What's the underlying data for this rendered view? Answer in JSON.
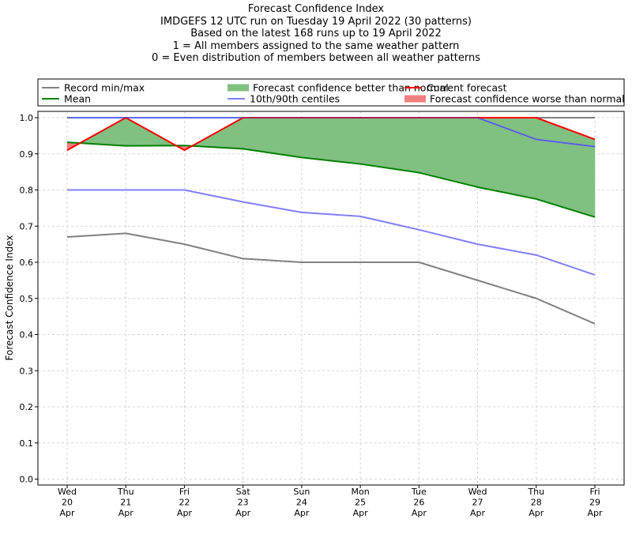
{
  "chart_data": {
    "type": "line",
    "title_lines": [
      "Forecast Confidence Index",
      "IMDGEFS 12 UTC run on Tuesday 19 April 2022 (30 patterns)",
      "Based on the latest 168 runs up to 19 April 2022",
      "1 = All members assigned to the same weather pattern",
      "0 = Even distribution of members between all weather patterns"
    ],
    "ylabel": "Forecast Confidence Index",
    "ylim": [
      0,
      1
    ],
    "yticks": [
      "0.0",
      "0.1",
      "0.2",
      "0.3",
      "0.4",
      "0.5",
      "0.6",
      "0.7",
      "0.8",
      "0.9",
      "1.0"
    ],
    "grid": true,
    "categories": [
      [
        "Wed",
        "20",
        "Apr"
      ],
      [
        "Thu",
        "21",
        "Apr"
      ],
      [
        "Fri",
        "22",
        "Apr"
      ],
      [
        "Sat",
        "23",
        "Apr"
      ],
      [
        "Sun",
        "24",
        "Apr"
      ],
      [
        "Mon",
        "25",
        "Apr"
      ],
      [
        "Tue",
        "26",
        "Apr"
      ],
      [
        "Wed",
        "27",
        "Apr"
      ],
      [
        "Thu",
        "28",
        "Apr"
      ],
      [
        "Fri",
        "29",
        "Apr"
      ]
    ],
    "legend": [
      {
        "label": "Record min/max",
        "kind": "line",
        "color": "#808080"
      },
      {
        "label": "Mean",
        "kind": "line",
        "color": "#008000"
      },
      {
        "label": "Forecast confidence better than normal",
        "kind": "patch",
        "color": "#80c080"
      },
      {
        "label": "10th/90th centiles",
        "kind": "line",
        "color": "#7f7fff"
      },
      {
        "label": "Current forecast",
        "kind": "line",
        "color": "#ff0000"
      },
      {
        "label": "Forecast confidence worse than normal",
        "kind": "patch",
        "color": "#f08080"
      }
    ],
    "series": [
      {
        "name": "Record min/max",
        "role": "record_min",
        "color": "#808080",
        "values": [
          0.67,
          0.68,
          0.65,
          0.61,
          0.6,
          0.6,
          0.6,
          0.55,
          0.5,
          0.43
        ]
      },
      {
        "name": "Record min/max",
        "role": "record_max",
        "color": "#808080",
        "values": [
          1.0,
          1.0,
          1.0,
          1.0,
          1.0,
          1.0,
          1.0,
          1.0,
          1.0,
          1.0
        ]
      },
      {
        "name": "10th/90th centiles",
        "role": "p10",
        "color": "#7f7fff",
        "values": [
          0.8,
          0.8,
          0.8,
          0.767,
          0.738,
          0.727,
          0.69,
          0.65,
          0.62,
          0.565
        ]
      },
      {
        "name": "10th/90th centiles",
        "role": "p90",
        "color": "#7f7fff",
        "values": [
          1.0,
          1.0,
          1.0,
          1.0,
          1.0,
          1.0,
          1.0,
          1.0,
          0.94,
          0.92
        ]
      },
      {
        "name": "Mean",
        "role": "mean",
        "color": "#008000",
        "values": [
          0.932,
          0.922,
          0.923,
          0.914,
          0.89,
          0.872,
          0.848,
          0.808,
          0.775,
          0.725
        ]
      },
      {
        "name": "Current forecast",
        "role": "current",
        "color": "#ff0000",
        "values": [
          0.91,
          1.0,
          0.91,
          1.0,
          1.0,
          1.0,
          1.0,
          1.0,
          1.0,
          0.94
        ]
      }
    ],
    "fill_better_color": "#80c080",
    "fill_worse_color": "#f08080"
  }
}
